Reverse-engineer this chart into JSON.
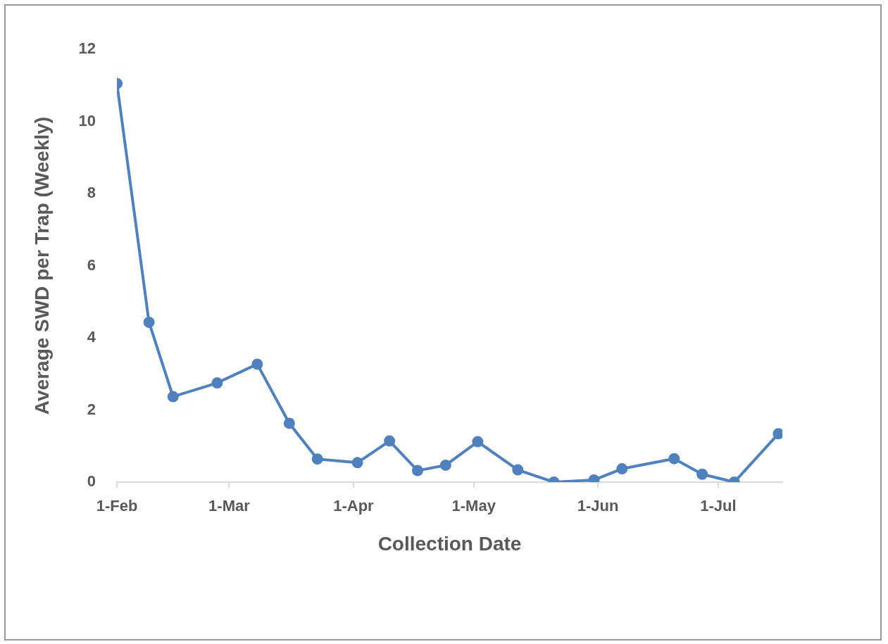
{
  "chart_data": {
    "type": "line",
    "xlabel": "Collection Date",
    "ylabel": "Average SWD per Trap (Weekly)",
    "x": [
      "--02-01",
      "--02-09",
      "--02-15",
      "--02-26",
      "--03-08",
      "--03-16",
      "--03-23",
      "--04-02",
      "--04-10",
      "--04-17",
      "--04-24",
      "--05-02",
      "--05-12",
      "--05-21",
      "--05-31",
      "--06-07",
      "--06-20",
      "--06-27",
      "--07-05",
      "--07-16"
    ],
    "series": [
      {
        "color": "#4f81bd",
        "values": [
          11.05,
          4.43,
          2.37,
          2.75,
          3.27,
          1.63,
          0.64,
          0.54,
          1.14,
          0.32,
          0.47,
          1.12,
          0.34,
          0,
          0.06,
          0.37,
          0.65,
          0.22,
          0,
          1.34
        ]
      }
    ],
    "marker": "circle",
    "line_style": "solid",
    "xlim": [
      "--02-01",
      "--07-17"
    ],
    "xticks": [
      {
        "value": "--02-01",
        "label": "1-Feb"
      },
      {
        "value": "--03-01",
        "label": "1-Mar"
      },
      {
        "value": "--04-01",
        "label": "1-Apr"
      },
      {
        "value": "--05-01",
        "label": "1-May"
      },
      {
        "value": "--06-01",
        "label": "1-Jun"
      },
      {
        "value": "--07-01",
        "label": "1-Jul"
      }
    ],
    "ylim": [
      0,
      12
    ],
    "yticks": [
      0,
      2,
      4,
      6,
      8,
      10,
      12
    ]
  }
}
